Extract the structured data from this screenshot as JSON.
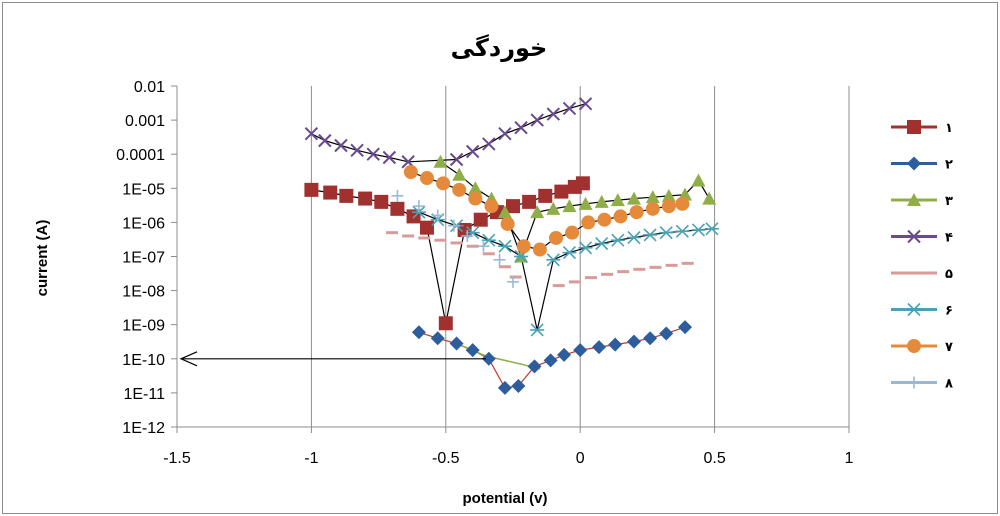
{
  "chart_data": {
    "type": "scatter",
    "title": "خوردگی",
    "xlabel": "potential (v)",
    "ylabel": "current (A)",
    "xlim": [
      -1.5,
      1
    ],
    "x_ticks": [
      "-1.5",
      "-1",
      "-0.5",
      "0",
      "0.5",
      "1"
    ],
    "x_tick_values": [
      -1.5,
      -1,
      -0.5,
      0,
      0.5,
      1
    ],
    "y_scale": "log",
    "ylim": [
      1e-12,
      0.01
    ],
    "y_ticks": [
      "0.01",
      "0.001",
      "0.0001",
      "1E-05",
      "1E-06",
      "1E-07",
      "1E-08",
      "1E-09",
      "1E-10",
      "1E-11",
      "1E-12"
    ],
    "y_tick_values": [
      0.01,
      0.001,
      0.0001,
      1e-05,
      1e-06,
      1e-07,
      1e-08,
      1e-09,
      1e-10,
      1e-11,
      1e-12
    ],
    "grid": "vertical",
    "legend_position": "right",
    "series": [
      {
        "name": "۱",
        "color": "#a0312f",
        "marker": "square",
        "x": [
          -1,
          -0.93,
          -0.87,
          -0.8,
          -0.74,
          -0.68,
          -0.62,
          -0.57,
          -0.5,
          -0.43,
          -0.37,
          -0.31,
          -0.25,
          -0.19,
          -0.13,
          -0.07,
          -0.02,
          0.01
        ],
        "y": [
          9e-06,
          7.5e-06,
          6e-06,
          5e-06,
          4e-06,
          2.5e-06,
          1.5e-06,
          7e-07,
          1.1e-09,
          6e-07,
          1.2e-06,
          2e-06,
          3e-06,
          4e-06,
          6e-06,
          8e-06,
          1.1e-05,
          1.4e-05
        ]
      },
      {
        "name": "۲",
        "color": "#2e5d9e",
        "marker": "diamond",
        "x": [
          -0.6,
          -0.53,
          -0.46,
          -0.4,
          -0.34,
          -0.28,
          -0.23,
          -0.17,
          -0.11,
          -0.06,
          0,
          0.07,
          0.13,
          0.2,
          0.26,
          0.32,
          0.39
        ],
        "y": [
          6e-10,
          4e-10,
          2.8e-10,
          1.8e-10,
          1e-10,
          1.4e-11,
          1.6e-11,
          6e-11,
          9e-11,
          1.3e-10,
          1.8e-10,
          2.2e-10,
          2.6e-10,
          3.2e-10,
          4e-10,
          5.5e-10,
          8.5e-10
        ]
      },
      {
        "name": "۳",
        "color": "#8fae47",
        "marker": "triangle",
        "x": [
          -0.52,
          -0.45,
          -0.39,
          -0.33,
          -0.28,
          -0.22,
          -0.16,
          -0.1,
          -0.04,
          0.02,
          0.08,
          0.14,
          0.2,
          0.27,
          0.33,
          0.39,
          0.44,
          0.48
        ],
        "y": [
          6e-05,
          2.5e-05,
          1e-05,
          5e-06,
          2e-06,
          1e-07,
          2e-06,
          2.5e-06,
          3e-06,
          3.5e-06,
          4e-06,
          4.5e-06,
          5e-06,
          5.5e-06,
          6e-06,
          6.5e-06,
          1.7e-05,
          5e-06
        ]
      },
      {
        "name": "۴",
        "color": "#6a4a8c",
        "marker": "x",
        "x": [
          -1,
          -0.95,
          -0.89,
          -0.83,
          -0.77,
          -0.71,
          -0.64,
          -0.46,
          -0.4,
          -0.34,
          -0.28,
          -0.22,
          -0.16,
          -0.1,
          -0.04,
          0.02
        ],
        "y": [
          0.0004,
          0.00025,
          0.00018,
          0.00013,
          0.0001,
          8e-05,
          6e-05,
          7e-05,
          0.00012,
          0.0002,
          0.0004,
          0.0006,
          0.001,
          0.0015,
          0.0022,
          0.003
        ]
      },
      {
        "name": "۵",
        "color": "#d99b9a",
        "marker": "dash",
        "x": [
          -0.7,
          -0.64,
          -0.58,
          -0.52,
          -0.46,
          -0.4,
          -0.34,
          -0.28,
          -0.24,
          -0.08,
          -0.02,
          0.04,
          0.1,
          0.16,
          0.22,
          0.28,
          0.34,
          0.4
        ],
        "y": [
          5e-07,
          4e-07,
          3.5e-07,
          3e-07,
          2.5e-07,
          2e-07,
          1.2e-07,
          5e-08,
          2.5e-08,
          1.4e-08,
          1.8e-08,
          2.4e-08,
          3e-08,
          3.6e-08,
          4.2e-08,
          4.8e-08,
          5.5e-08,
          6.3e-08
        ]
      },
      {
        "name": "۶",
        "color": "#4aa0b5",
        "marker": "asterisk",
        "x": [
          -0.6,
          -0.53,
          -0.46,
          -0.4,
          -0.34,
          -0.28,
          -0.22,
          -0.16,
          -0.1,
          -0.04,
          0.02,
          0.08,
          0.14,
          0.2,
          0.26,
          0.32,
          0.38,
          0.44,
          0.49
        ],
        "y": [
          2e-06,
          1.2e-06,
          8e-07,
          5e-07,
          3e-07,
          2e-07,
          1e-07,
          7e-10,
          8e-08,
          1.3e-07,
          1.8e-07,
          2.4e-07,
          3e-07,
          3.6e-07,
          4.3e-07,
          5e-07,
          5.5e-07,
          6e-07,
          6.5e-07
        ]
      },
      {
        "name": "۷",
        "color": "#e58a3b",
        "marker": "circle",
        "x": [
          -0.63,
          -0.57,
          -0.51,
          -0.45,
          -0.39,
          -0.33,
          -0.27,
          -0.21,
          -0.15,
          -0.09,
          -0.03,
          0.03,
          0.09,
          0.15,
          0.21,
          0.27,
          0.33,
          0.38
        ],
        "y": [
          3e-05,
          2e-05,
          1.4e-05,
          9e-06,
          5e-06,
          3e-06,
          9e-07,
          2e-07,
          1.6e-07,
          3.5e-07,
          5e-07,
          1e-06,
          1.2e-06,
          1.5e-06,
          2e-06,
          2.5e-06,
          3e-06,
          3.5e-06
        ]
      },
      {
        "name": "۸",
        "color": "#9bb7d8",
        "marker": "plus",
        "x": [
          -0.68,
          -0.6,
          -0.53,
          -0.47,
          -0.42,
          -0.36,
          -0.3,
          -0.25
        ],
        "y": [
          6e-06,
          3e-06,
          1.6e-06,
          8e-07,
          4e-07,
          2e-07,
          8e-08,
          1.8e-08
        ]
      }
    ],
    "annotations": [
      "fit curves (black/red/green) through each series",
      "horizontal arrow at 1E-10 pointing left to the current axis"
    ]
  }
}
